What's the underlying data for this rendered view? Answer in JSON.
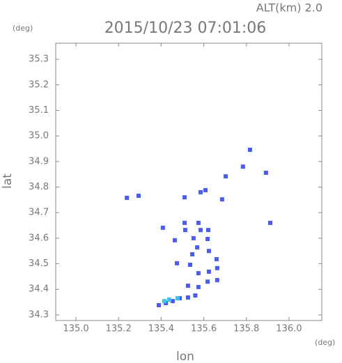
{
  "chart_data": {
    "type": "scatter",
    "title": "2015/10/23 07:01:06",
    "subtitle": "ALT(km) 2.0",
    "x_label": "lon",
    "y_label": "lat",
    "x_unit": "(deg)",
    "y_unit": "(deg)",
    "xlim": [
      134.905,
      136.154
    ],
    "ylim": [
      34.278,
      35.363
    ],
    "xticks": [
      {
        "value": 135.0,
        "label": "135.0"
      },
      135.2,
      135.4,
      135.6,
      135.8,
      {
        "value": 136.0,
        "label": "136.0"
      }
    ],
    "yticks": [
      34.3,
      34.4,
      34.5,
      34.6,
      34.7,
      34.8,
      34.9,
      {
        "value": 35.0,
        "label": "35.0"
      },
      35.1,
      35.2,
      35.3
    ],
    "series": [
      {
        "color": "#4a5cf0",
        "x": [
          135.239,
          135.294,
          135.817,
          135.784,
          135.892,
          135.703,
          135.608,
          135.585,
          135.686,
          135.51,
          135.912,
          135.408,
          135.51,
          135.513,
          135.575,
          135.585,
          135.621,
          135.464,
          135.552,
          135.569,
          135.546,
          135.618,
          135.624,
          135.66,
          135.536,
          135.474,
          135.575,
          135.624,
          135.663,
          135.663,
          135.618,
          135.575,
          135.526,
          135.56,
          135.526,
          135.487,
          135.454,
          135.422,
          135.389
        ],
        "values": [
          34.758,
          34.766,
          34.946,
          34.88,
          34.856,
          34.842,
          34.788,
          34.78,
          34.752,
          34.76,
          34.66,
          34.641,
          34.66,
          34.632,
          34.66,
          34.632,
          34.632,
          34.592,
          34.6,
          34.564,
          34.537,
          34.597,
          34.55,
          34.518,
          34.496,
          34.502,
          34.463,
          34.469,
          34.483,
          34.436,
          34.43,
          34.409,
          34.414,
          34.376,
          34.368,
          34.365,
          34.354,
          34.346,
          34.338
        ]
      },
      {
        "color": "#3fc4f0",
        "x": [
          135.415,
          135.438,
          135.477
        ],
        "values": [
          34.354,
          34.36,
          34.365
        ]
      }
    ]
  }
}
